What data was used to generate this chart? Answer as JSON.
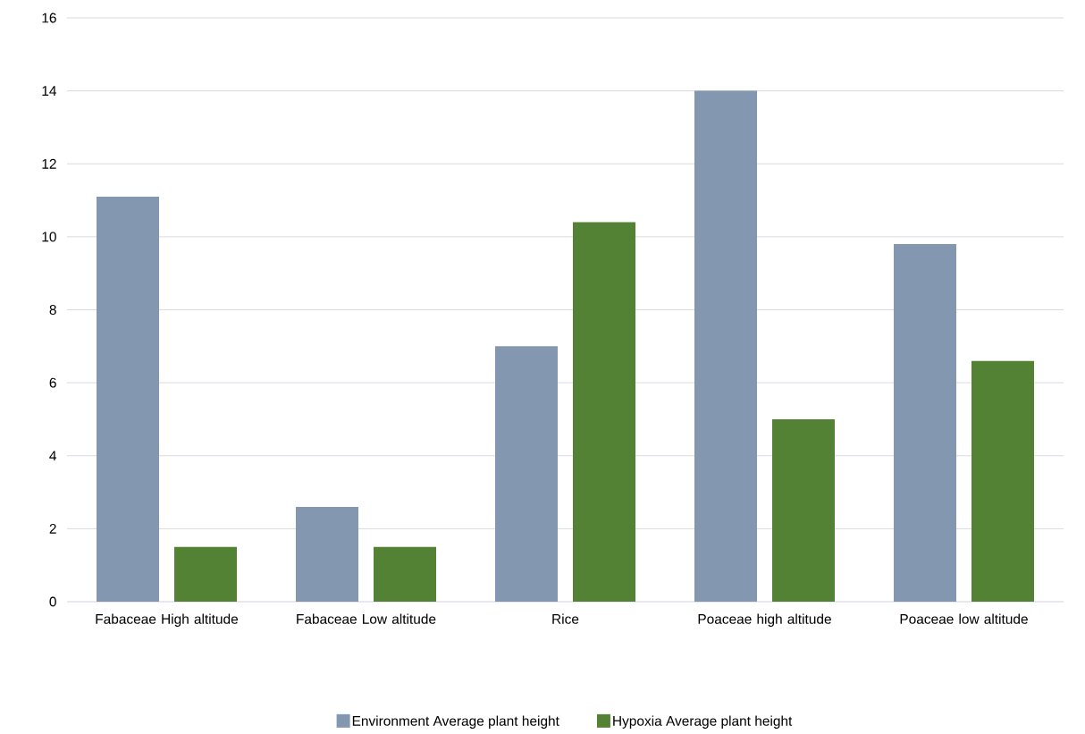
{
  "chart_data": {
    "type": "bar",
    "categories": [
      "Fabaceae High altitude",
      "Fabaceae Low altitude",
      "Rice",
      "Poaceae high altitude",
      "Poaceae low altitude"
    ],
    "series": [
      {
        "name": "Environment Average plant height",
        "color": "#8497b0",
        "values": [
          11.1,
          2.6,
          7.0,
          14.0,
          9.8
        ]
      },
      {
        "name": "Hypoxia Average plant height",
        "color": "#548235",
        "values": [
          1.5,
          1.5,
          10.4,
          5.0,
          6.6
        ]
      }
    ],
    "ylim": [
      0,
      16
    ],
    "yticks": [
      0,
      2,
      4,
      6,
      8,
      10,
      12,
      14,
      16
    ],
    "grid": "y",
    "legend": "bottom"
  }
}
